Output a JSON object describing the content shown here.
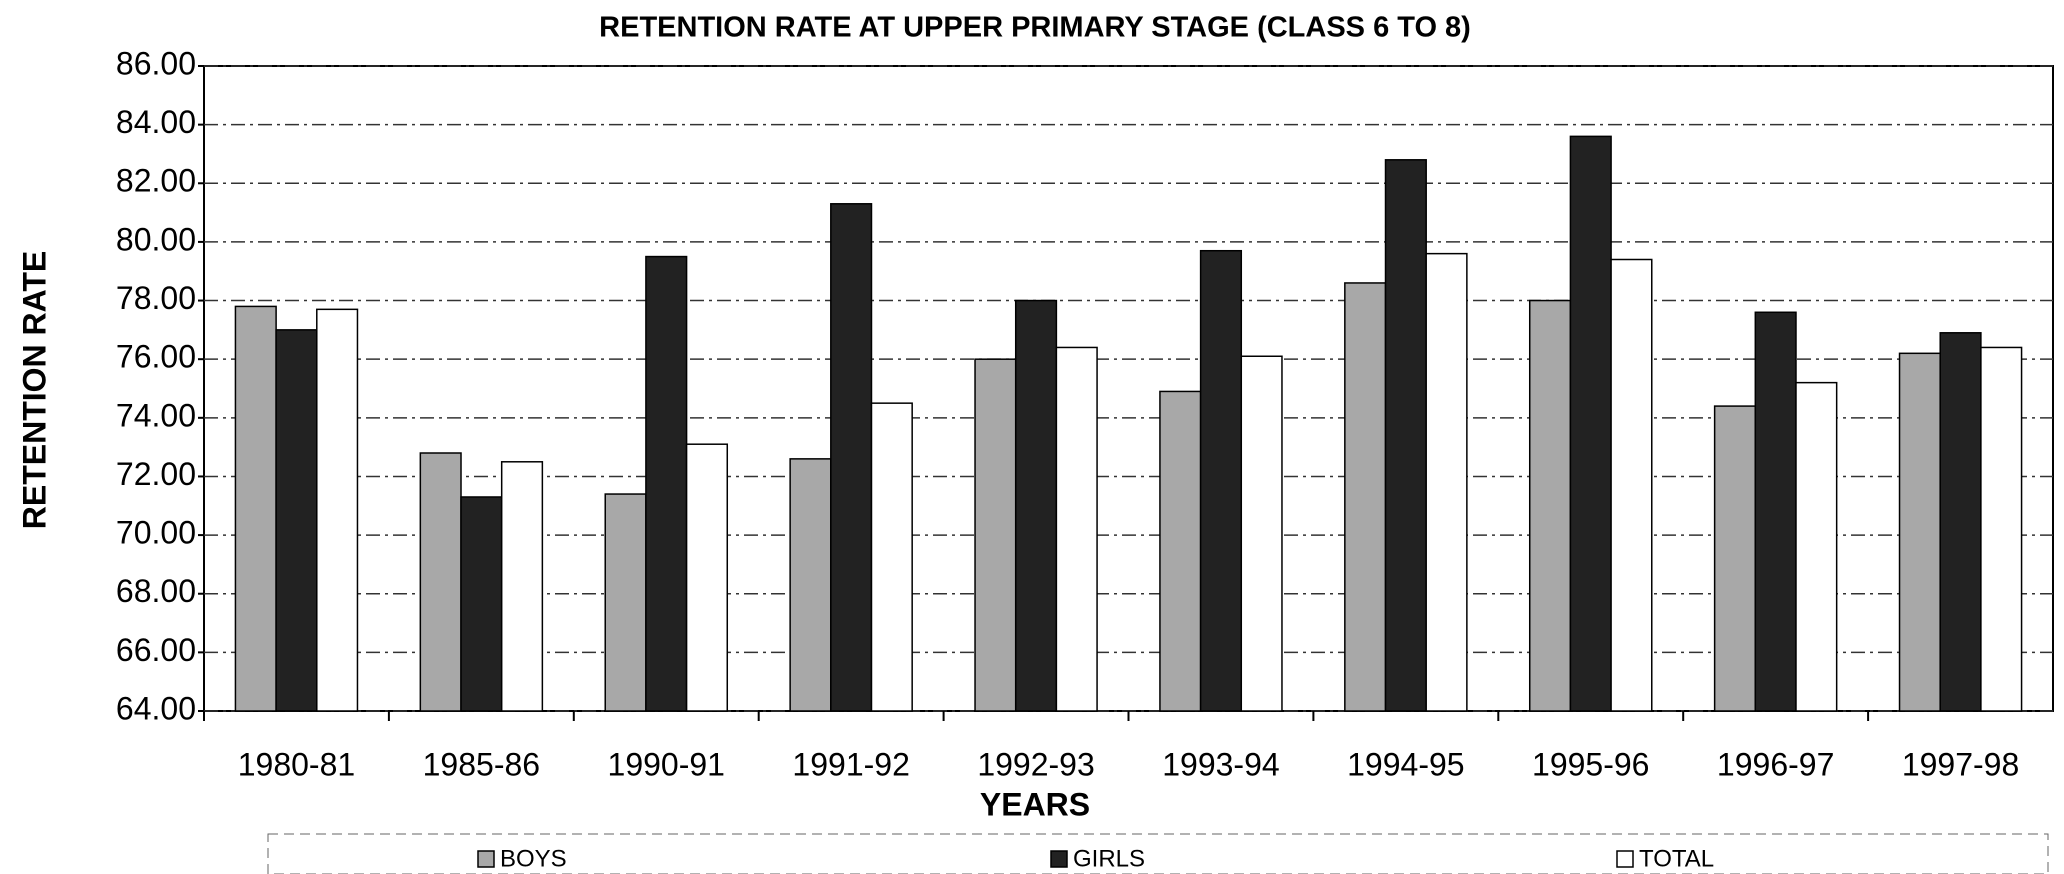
{
  "chart_data": {
    "type": "bar",
    "title": "RETENTION RATE AT UPPER PRIMARY STAGE (CLASS 6 TO 8)",
    "x_label": "YEARS",
    "y_label": "RETENTION RATE",
    "categories": [
      "1980-81",
      "1985-86",
      "1990-91",
      "1991-92",
      "1992-93",
      "1993-94",
      "1994-95",
      "1995-96",
      "1996-97",
      "1997-98"
    ],
    "series": [
      {
        "name": "BOYS",
        "color": "#a8a8a8",
        "values": [
          77.8,
          72.8,
          71.4,
          72.6,
          76.0,
          74.9,
          78.6,
          78.0,
          74.4,
          76.2
        ]
      },
      {
        "name": "GIRLS",
        "color": "#222222",
        "values": [
          77.0,
          71.3,
          79.5,
          81.3,
          78.0,
          79.7,
          82.8,
          83.6,
          77.6,
          76.9
        ]
      },
      {
        "name": "TOTAL",
        "color": "#ffffff",
        "values": [
          77.7,
          72.5,
          73.1,
          74.5,
          76.4,
          76.1,
          79.6,
          79.4,
          75.2,
          76.4
        ]
      }
    ],
    "ylim": [
      64,
      86
    ],
    "yticks": [
      {
        "value": 64,
        "label": "64.00"
      },
      {
        "value": 66,
        "label": "66.00"
      },
      {
        "value": 68,
        "label": "68.00"
      },
      {
        "value": 70,
        "label": "70.00"
      },
      {
        "value": 72,
        "label": "72.00"
      },
      {
        "value": 74,
        "label": "74.00"
      },
      {
        "value": 76,
        "label": "76.00"
      },
      {
        "value": 78,
        "label": "78.00"
      },
      {
        "value": 80,
        "label": "80.00"
      },
      {
        "value": 82,
        "label": "82.00"
      },
      {
        "value": 84,
        "label": "84.00"
      },
      {
        "value": 86,
        "label": "86.00"
      }
    ],
    "grid": true,
    "legend": "bottom"
  }
}
